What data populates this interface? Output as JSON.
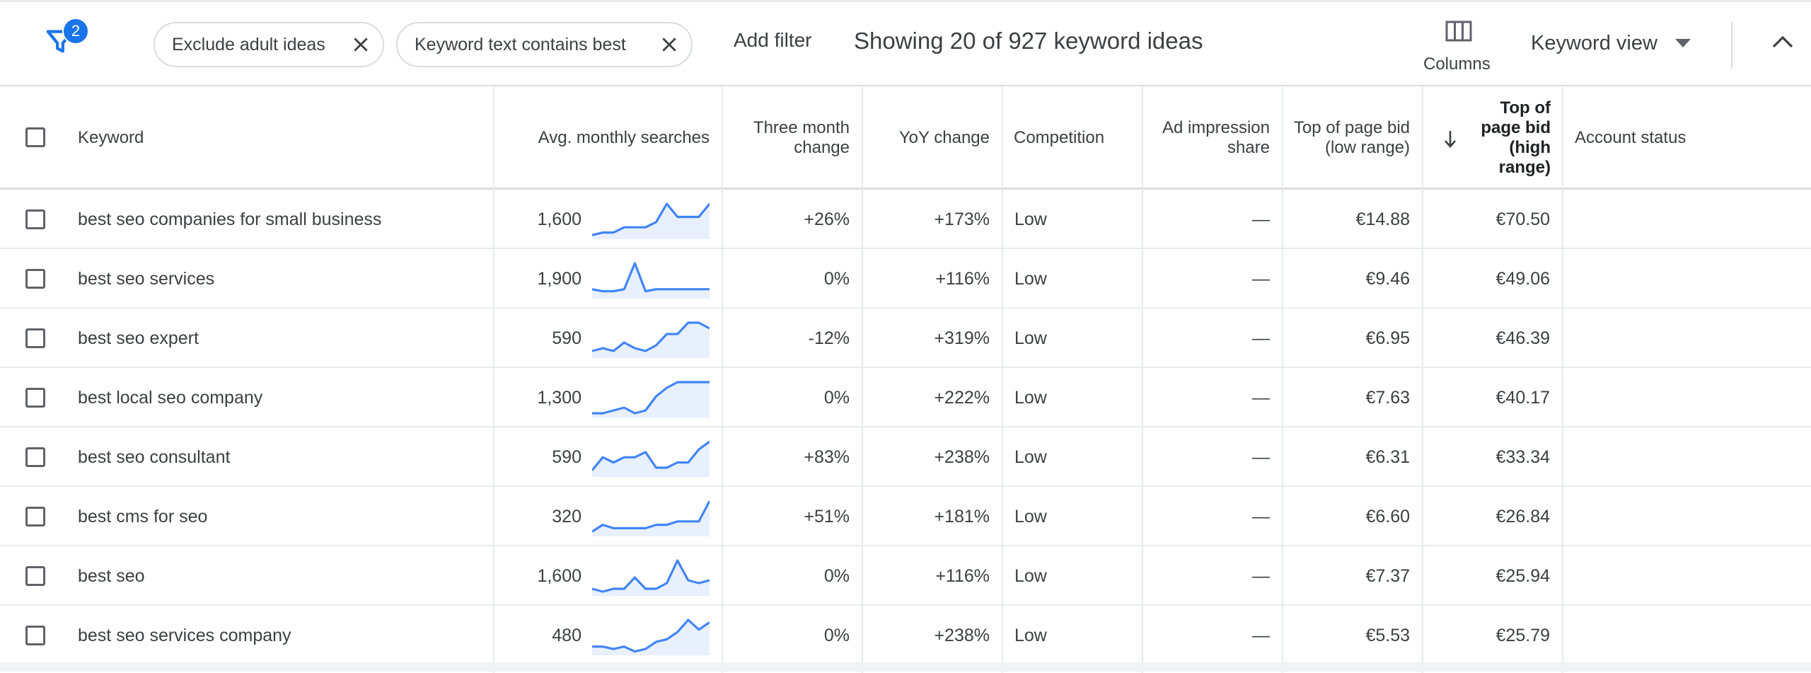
{
  "toolbar": {
    "filter_count": "2",
    "chips": [
      {
        "label": "Exclude adult ideas"
      },
      {
        "label": "Keyword text contains best"
      }
    ],
    "add_filter": "Add filter",
    "showing_text": "Showing 20 of 927 keyword ideas",
    "columns_label": "Columns",
    "keyword_view": "Keyword view"
  },
  "table": {
    "headers": {
      "keyword": "Keyword",
      "avg_searches": "Avg. monthly searches",
      "three_month": "Three month change",
      "yoy": "YoY change",
      "competition": "Competition",
      "ad_impression": "Ad impression share",
      "bid_low": "Top of page bid (low range)",
      "bid_high": "Top of page bid (high range)",
      "account_status": "Account status"
    },
    "rows": [
      {
        "keyword": "best seo companies for small business",
        "searches": "1,600",
        "trend": [
          1,
          2,
          2,
          4,
          4,
          4,
          6,
          13,
          8,
          8,
          8,
          13
        ],
        "three_month": "+26%",
        "yoy": "+173%",
        "competition": "Low",
        "ad_share": "—",
        "bid_low": "€14.88",
        "bid_high": "€70.50"
      },
      {
        "keyword": "best seo services",
        "searches": "1,900",
        "trend": [
          4,
          3,
          3,
          4,
          17,
          3,
          4,
          4,
          4,
          4,
          4,
          4
        ],
        "three_month": "0%",
        "yoy": "+116%",
        "competition": "Low",
        "ad_share": "—",
        "bid_low": "€9.46",
        "bid_high": "€49.06"
      },
      {
        "keyword": "best seo expert",
        "searches": "590",
        "trend": [
          2,
          3,
          2,
          5,
          3,
          2,
          4,
          8,
          8,
          12,
          12,
          10
        ],
        "three_month": "-12%",
        "yoy": "+319%",
        "competition": "Low",
        "ad_share": "—",
        "bid_low": "€6.95",
        "bid_high": "€46.39"
      },
      {
        "keyword": "best local seo company",
        "searches": "1,300",
        "trend": [
          1,
          1,
          2,
          3,
          1,
          2,
          7,
          10,
          12,
          12,
          12,
          12
        ],
        "three_month": "0%",
        "yoy": "+222%",
        "competition": "Low",
        "ad_share": "—",
        "bid_low": "€7.63",
        "bid_high": "€40.17"
      },
      {
        "keyword": "best seo consultant",
        "searches": "590",
        "trend": [
          2,
          7,
          5,
          7,
          7,
          9,
          3,
          3,
          5,
          5,
          10,
          13
        ],
        "three_month": "+83%",
        "yoy": "+238%",
        "competition": "Low",
        "ad_share": "—",
        "bid_low": "€6.31",
        "bid_high": "€33.34"
      },
      {
        "keyword": "best cms for seo",
        "searches": "320",
        "trend": [
          1,
          3,
          2,
          2,
          2,
          2,
          3,
          3,
          4,
          4,
          4,
          10
        ],
        "three_month": "+51%",
        "yoy": "+181%",
        "competition": "Low",
        "ad_share": "—",
        "bid_low": "€6.60",
        "bid_high": "€26.84"
      },
      {
        "keyword": "best seo",
        "searches": "1,600",
        "trend": [
          2,
          1,
          2,
          2,
          6,
          2,
          2,
          4,
          12,
          5,
          4,
          5
        ],
        "three_month": "0%",
        "yoy": "+116%",
        "competition": "Low",
        "ad_share": "—",
        "bid_low": "€7.37",
        "bid_high": "€25.94"
      },
      {
        "keyword": "best seo services company",
        "searches": "480",
        "trend": [
          3,
          3,
          2,
          3,
          1,
          2,
          5,
          6,
          9,
          14,
          10,
          13
        ],
        "three_month": "0%",
        "yoy": "+238%",
        "competition": "Low",
        "ad_share": "—",
        "bid_low": "€5.53",
        "bid_high": "€25.79"
      }
    ]
  },
  "colors": {
    "accent": "#1a73e8",
    "spark_line": "#4285f4",
    "spark_fill": "#e8f0fe",
    "border": "#dadce0"
  },
  "icons": [
    "filter-icon",
    "close-icon",
    "columns-icon",
    "caret-down-icon",
    "chevron-up-icon",
    "sort-down-arrow-icon",
    "checkbox-icon"
  ]
}
